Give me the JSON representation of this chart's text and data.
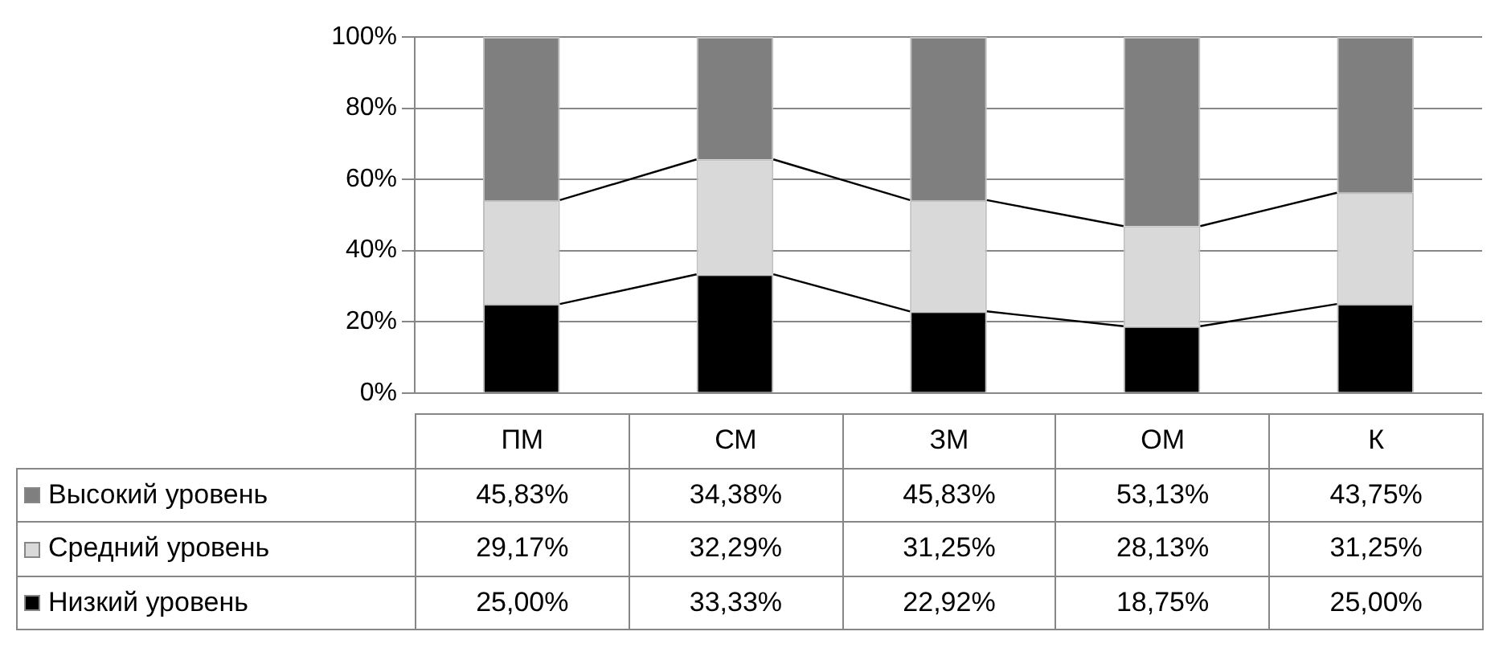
{
  "chart_data": {
    "type": "bar",
    "stacked": true,
    "categories": [
      "ПМ",
      "СМ",
      "ЗМ",
      "ОМ",
      "К"
    ],
    "series": [
      {
        "name": "Низкий уровень",
        "color": "#000000",
        "values": [
          25.0,
          33.33,
          22.92,
          18.75,
          25.0
        ],
        "value_labels": [
          "25,00%",
          "33,33%",
          "22,92%",
          "18,75%",
          "25,00%"
        ]
      },
      {
        "name": "Средний уровень",
        "color": "#d9d9d9",
        "values": [
          29.17,
          32.29,
          31.25,
          28.13,
          31.25
        ],
        "value_labels": [
          "29,17%",
          "32,29%",
          "31,25%",
          "28,13%",
          "31,25%"
        ]
      },
      {
        "name": "Высокий уровень",
        "color": "#7f7f7f",
        "values": [
          45.83,
          34.38,
          45.83,
          53.13,
          43.75
        ],
        "value_labels": [
          "45,83%",
          "34,38%",
          "45,83%",
          "53,13%",
          "43,75%"
        ]
      }
    ],
    "ylim": [
      0,
      100
    ],
    "yticks": [
      {
        "value": 0,
        "label": "0%"
      },
      {
        "value": 20,
        "label": "20%"
      },
      {
        "value": 40,
        "label": "40%"
      },
      {
        "value": 60,
        "label": "60%"
      },
      {
        "value": 80,
        "label": "80%"
      },
      {
        "value": 100,
        "label": "100%"
      }
    ],
    "grid": "y",
    "legend": "bottom"
  }
}
